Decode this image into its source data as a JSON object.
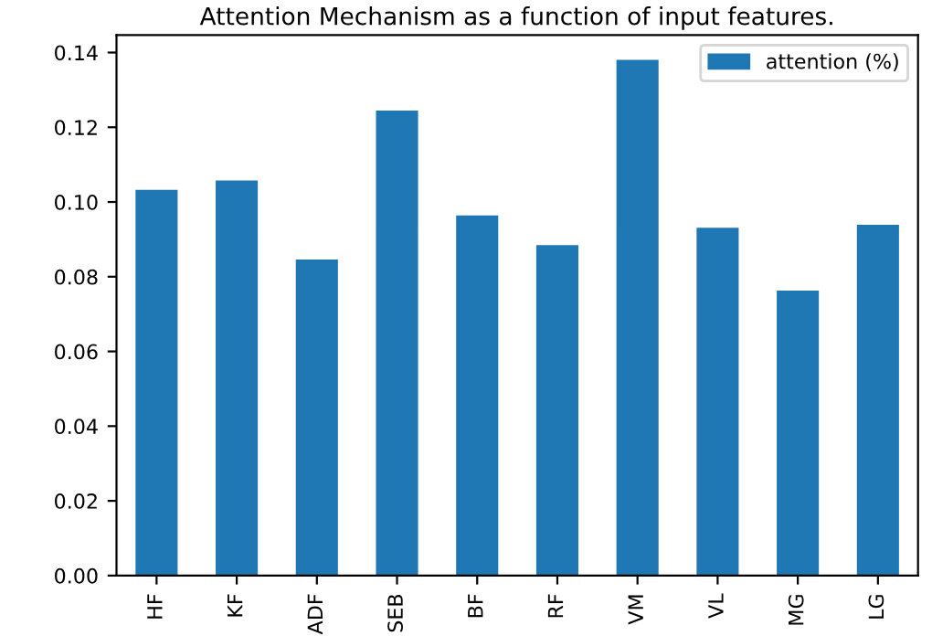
{
  "chart_data": {
    "type": "bar",
    "title": "Attention Mechanism as a function of input features.",
    "categories": [
      "HF",
      "KF",
      "ADF",
      "SEB",
      "BF",
      "RF",
      "VM",
      "VL",
      "MG",
      "LG"
    ],
    "series": [
      {
        "name": "attention (%)",
        "color": "#1f77b4",
        "values": [
          0.103,
          0.1055,
          0.0843,
          0.1242,
          0.0961,
          0.0882,
          0.1378,
          0.0928,
          0.076,
          0.0936
        ]
      }
    ],
    "ylim": [
      0,
      0.1447
    ],
    "yticks": [
      {
        "value": 0,
        "label": "0.00"
      },
      {
        "value": 0.02,
        "label": "0.02"
      },
      {
        "value": 0.04,
        "label": "0.04"
      },
      {
        "value": 0.06,
        "label": "0.06"
      },
      {
        "value": 0.08,
        "label": "0.08"
      },
      {
        "value": 0.1,
        "label": "0.10"
      },
      {
        "value": 0.12,
        "label": "0.12"
      },
      {
        "value": 0.14,
        "label": "0.14"
      }
    ],
    "grid": false,
    "legend": "top right"
  }
}
